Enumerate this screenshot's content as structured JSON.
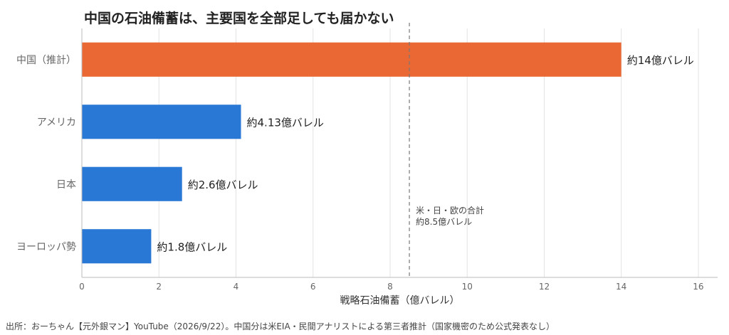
{
  "chart_data": {
    "type": "bar",
    "orientation": "horizontal",
    "title": "中国の石油備蓄は、主要国を全部足しても届かない",
    "xlabel": "戦略石油備蓄（億バレル）",
    "ylabel": "",
    "xlim": [
      0,
      16.5
    ],
    "xticks": [
      0,
      2,
      4,
      6,
      8,
      10,
      12,
      14,
      16
    ],
    "grid": "vertical",
    "legend": "none",
    "categories": [
      "中国（推計）",
      "アメリカ",
      "日本",
      "ヨーロッパ勢"
    ],
    "values": [
      14,
      4.13,
      2.6,
      1.8
    ],
    "data_labels": [
      "約14億バレル",
      "約4.13億バレル",
      "約2.6億バレル",
      "約1.8億バレル"
    ],
    "bar_colors": [
      "#e96833",
      "#2a78d6",
      "#2a78d6",
      "#2a78d6"
    ],
    "reference_line": {
      "value": 8.5,
      "style": "dashed",
      "label_lines": [
        "米・日・欧の合計",
        "約8.5億バレル"
      ]
    }
  },
  "source_note": "出所：おーちゃん【元外銀マン】YouTube（2026/9/22）。中国分は米EIA・民間アナリストによる第三者推計（国家機密のため公式発表なし）"
}
